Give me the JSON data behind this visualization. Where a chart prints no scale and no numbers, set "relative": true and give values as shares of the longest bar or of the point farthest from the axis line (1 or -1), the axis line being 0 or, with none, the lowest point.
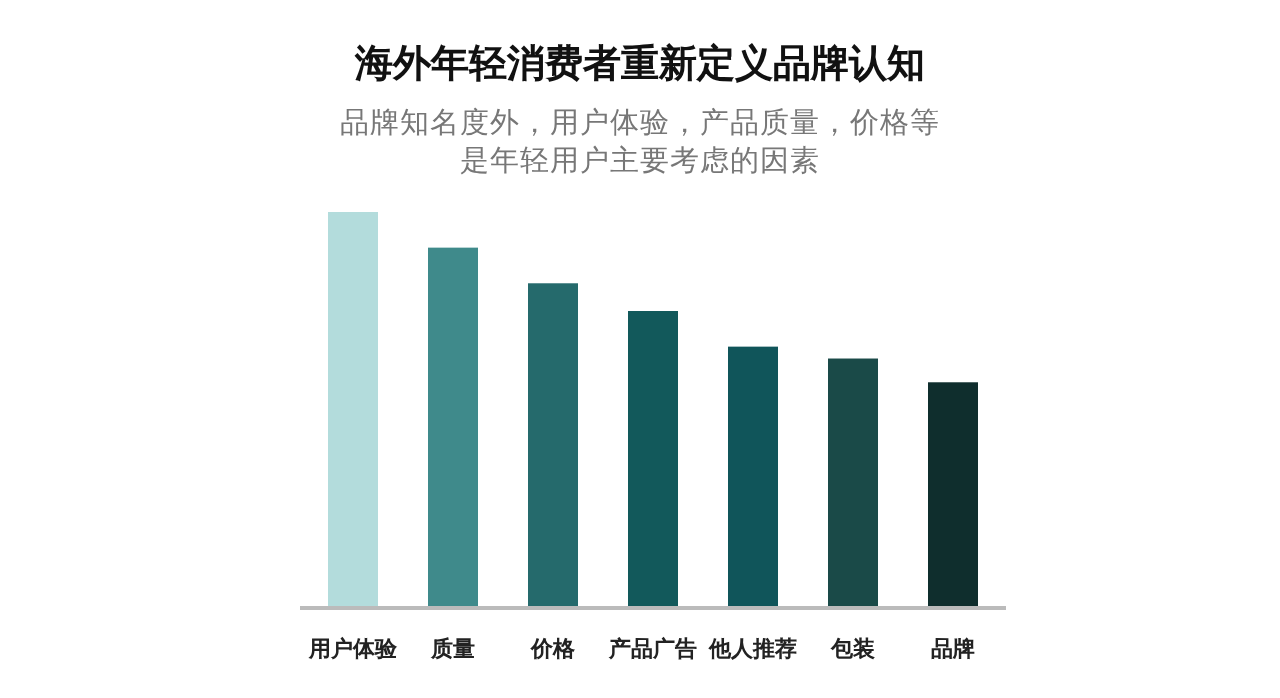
{
  "chart_data": {
    "type": "bar",
    "title": "海外年轻消费者重新定义品牌认知",
    "subtitle": "品牌知名度外，用户体验，产品质量，价格等是年轻用户主要考虑的因素",
    "categories": [
      "用户体验",
      "质量",
      "价格",
      "产品广告",
      "他人推荐",
      "包装",
      "品牌"
    ],
    "values": [
      1,
      0.91,
      0.82,
      0.75,
      0.66,
      0.63,
      0.57
    ],
    "colors": [
      "#b3dcdc",
      "#3f8a8b",
      "#256a6c",
      "#12595b",
      "#10555a",
      "#1a4a48",
      "#0f2e2d"
    ],
    "relative": true
  }
}
